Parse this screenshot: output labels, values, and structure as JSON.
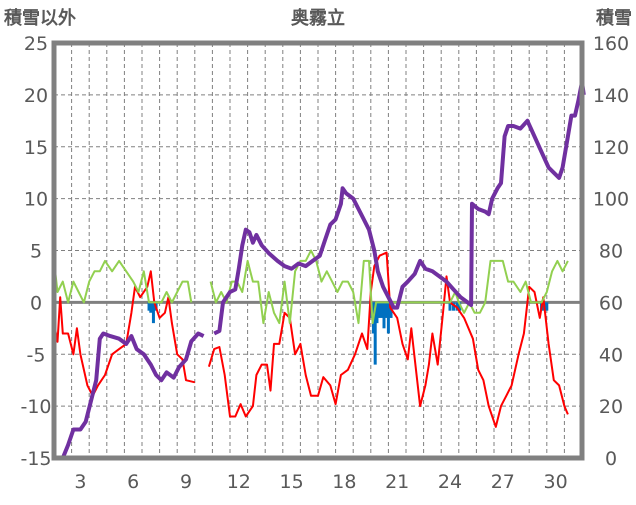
{
  "chart_data": {
    "type": "line",
    "title": "奥霧立",
    "ylabel_left": "積雪以外",
    "ylabel_right": "積雪",
    "xlim": [
      1.5,
      31.5
    ],
    "ylim_left": [
      -15,
      25
    ],
    "ylim_right": [
      0,
      160
    ],
    "x_ticks": [
      3,
      6,
      9,
      12,
      15,
      18,
      21,
      24,
      27,
      30
    ],
    "left_ticks": [
      25,
      20,
      15,
      10,
      5,
      0,
      -5,
      -10,
      -15
    ],
    "right_ticks": [
      160,
      140,
      120,
      100,
      80,
      60,
      40,
      20,
      0
    ],
    "grid": true,
    "colors": {
      "temperature": "#ff0000",
      "green": "#92d050",
      "bars": "#0070c0",
      "snow": "#7030a0",
      "frame": "#808080"
    },
    "series": [
      {
        "name": "red",
        "axis": "left",
        "points": [
          [
            1.5,
            -2
          ],
          [
            1.7,
            -3.8
          ],
          [
            1.85,
            0.5
          ],
          [
            2.0,
            -3
          ],
          [
            2.3,
            -3
          ],
          [
            2.6,
            -5
          ],
          [
            2.8,
            -2.5
          ],
          [
            3.0,
            -5
          ],
          [
            3.4,
            -8
          ],
          [
            3.7,
            -9
          ],
          [
            4.0,
            -8
          ],
          [
            4.4,
            -7
          ],
          [
            4.8,
            -5
          ],
          [
            5.2,
            -4.5
          ],
          [
            5.6,
            -4
          ],
          [
            5.9,
            -1
          ],
          [
            6.1,
            1.5
          ],
          [
            6.4,
            0.5
          ],
          [
            6.8,
            1.5
          ],
          [
            7.0,
            3
          ],
          [
            7.2,
            0
          ],
          [
            7.5,
            -1.5
          ],
          [
            7.8,
            -1
          ],
          [
            8.0,
            0.5
          ],
          [
            8.2,
            -2
          ],
          [
            8.5,
            -5
          ],
          [
            8.8,
            -5.5
          ],
          [
            9.0,
            -7.5
          ],
          [
            9.5,
            -7.7
          ],
          null,
          [
            10.3,
            -6.2
          ],
          [
            10.6,
            -4.5
          ],
          [
            10.9,
            -4.3
          ],
          [
            11.2,
            -7
          ],
          [
            11.5,
            -11
          ],
          [
            11.8,
            -11
          ],
          [
            12.1,
            -9.8
          ],
          [
            12.4,
            -11
          ],
          [
            12.8,
            -10
          ],
          [
            13.0,
            -7
          ],
          [
            13.3,
            -6
          ],
          [
            13.6,
            -6
          ],
          [
            13.8,
            -8.5
          ],
          [
            14.0,
            -4
          ],
          [
            14.3,
            -4
          ],
          [
            14.6,
            -1
          ],
          [
            14.9,
            -1.5
          ],
          [
            15.2,
            -5
          ],
          [
            15.5,
            -4
          ],
          [
            15.8,
            -7
          ],
          [
            16.1,
            -9
          ],
          [
            16.5,
            -9
          ],
          [
            16.8,
            -7.2
          ],
          [
            17.2,
            -8
          ],
          [
            17.5,
            -9.8
          ],
          [
            17.8,
            -7
          ],
          [
            18.2,
            -6.5
          ],
          [
            18.6,
            -5
          ],
          [
            19.0,
            -3
          ],
          [
            19.3,
            -4.5
          ],
          [
            19.5,
            1
          ],
          [
            19.7,
            3.5
          ],
          [
            20.0,
            4.5
          ],
          [
            20.4,
            4.8
          ],
          [
            20.6,
            -0.5
          ],
          [
            21.0,
            -1.5
          ],
          [
            21.3,
            -4
          ],
          [
            21.6,
            -5.5
          ],
          [
            21.8,
            -2.5
          ],
          [
            22.0,
            -5.5
          ],
          [
            22.3,
            -10
          ],
          [
            22.6,
            -8
          ],
          [
            22.8,
            -6
          ],
          [
            23.0,
            -3
          ],
          [
            23.3,
            -6
          ],
          [
            23.6,
            -1
          ],
          [
            23.8,
            2.5
          ],
          [
            24.0,
            0
          ],
          [
            24.4,
            -0.5
          ],
          [
            24.8,
            -1.5
          ],
          [
            25.3,
            -3.5
          ],
          [
            25.6,
            -6.5
          ],
          [
            25.9,
            -7.5
          ],
          [
            26.2,
            -10
          ],
          [
            26.6,
            -12
          ],
          [
            26.9,
            -10
          ],
          [
            27.2,
            -9
          ],
          [
            27.5,
            -8
          ],
          [
            27.9,
            -5
          ],
          [
            28.2,
            -3
          ],
          [
            28.5,
            1.5
          ],
          [
            28.8,
            1
          ],
          [
            29.1,
            -1.5
          ],
          [
            29.3,
            0.5
          ],
          [
            29.6,
            -4
          ],
          [
            29.9,
            -7.5
          ],
          [
            30.2,
            -8
          ],
          [
            30.5,
            -10
          ],
          [
            30.7,
            -10.8
          ]
        ]
      },
      {
        "name": "green",
        "axis": "left",
        "points": [
          [
            1.5,
            4
          ],
          [
            1.7,
            1
          ],
          [
            2.0,
            2
          ],
          [
            2.3,
            0
          ],
          [
            2.6,
            2
          ],
          [
            2.9,
            1
          ],
          [
            3.2,
            0
          ],
          [
            3.5,
            2
          ],
          [
            3.8,
            3
          ],
          [
            4.1,
            3
          ],
          [
            4.4,
            4
          ],
          [
            4.8,
            3
          ],
          [
            5.2,
            4
          ],
          [
            5.6,
            3
          ],
          [
            6.0,
            2
          ],
          [
            6.3,
            1
          ],
          [
            6.6,
            3
          ],
          [
            6.9,
            0
          ],
          [
            7.2,
            0
          ],
          [
            7.6,
            0
          ],
          [
            7.9,
            1
          ],
          [
            8.2,
            0
          ],
          [
            8.5,
            1
          ],
          [
            8.8,
            2
          ],
          [
            9.1,
            2
          ],
          [
            9.3,
            0
          ],
          null,
          [
            10.4,
            2
          ],
          [
            10.7,
            0
          ],
          [
            11.0,
            1
          ],
          [
            11.3,
            0
          ],
          [
            11.6,
            2
          ],
          [
            11.9,
            2
          ],
          [
            12.2,
            1
          ],
          [
            12.5,
            4
          ],
          [
            12.8,
            2
          ],
          [
            13.1,
            2
          ],
          [
            13.4,
            -2
          ],
          [
            13.7,
            1
          ],
          [
            14.0,
            -1
          ],
          [
            14.3,
            -2
          ],
          [
            14.6,
            2
          ],
          [
            14.9,
            -2
          ],
          [
            15.2,
            3
          ],
          [
            15.5,
            4
          ],
          [
            15.8,
            4
          ],
          [
            16.1,
            5
          ],
          [
            16.4,
            4
          ],
          [
            16.7,
            2
          ],
          [
            17.0,
            3
          ],
          [
            17.3,
            2
          ],
          [
            17.6,
            1
          ],
          [
            17.9,
            2
          ],
          [
            18.2,
            2
          ],
          [
            18.5,
            1
          ],
          [
            18.8,
            -2
          ],
          [
            19.1,
            4
          ],
          [
            19.4,
            4
          ],
          [
            19.6,
            -2
          ],
          [
            19.8,
            0
          ],
          [
            24.0,
            0
          ],
          [
            24.3,
            1
          ],
          [
            24.5,
            0
          ],
          [
            24.8,
            -1
          ],
          [
            25.1,
            0
          ],
          [
            25.4,
            -1
          ],
          [
            25.7,
            -1
          ],
          [
            26.0,
            0
          ],
          [
            26.3,
            4
          ],
          [
            26.6,
            4
          ],
          [
            27.0,
            4
          ],
          [
            27.3,
            2
          ],
          [
            27.6,
            2
          ],
          [
            28.0,
            1
          ],
          [
            28.3,
            2
          ],
          [
            28.6,
            0
          ],
          [
            28.9,
            0
          ],
          [
            29.2,
            0
          ],
          [
            29.5,
            1
          ],
          [
            29.8,
            3
          ],
          [
            30.1,
            4
          ],
          [
            30.4,
            3
          ],
          [
            30.7,
            4
          ]
        ]
      },
      {
        "name": "snow",
        "axis": "right",
        "points": [
          [
            1.5,
            0
          ],
          [
            2.0,
            0
          ],
          [
            2.3,
            5
          ],
          [
            2.6,
            11
          ],
          [
            3.0,
            11
          ],
          [
            3.3,
            14
          ],
          [
            3.6,
            22
          ],
          [
            3.9,
            30
          ],
          [
            4.1,
            46
          ],
          [
            4.3,
            48
          ],
          [
            4.7,
            47
          ],
          [
            5.2,
            46
          ],
          [
            5.6,
            44
          ],
          [
            5.9,
            47
          ],
          [
            6.2,
            42
          ],
          [
            6.6,
            40
          ],
          [
            7.0,
            36
          ],
          [
            7.3,
            32
          ],
          [
            7.6,
            30
          ],
          [
            7.9,
            33
          ],
          [
            8.3,
            31
          ],
          [
            8.6,
            35
          ],
          [
            9.0,
            38
          ],
          [
            9.3,
            45
          ],
          [
            9.7,
            48
          ],
          [
            10.0,
            47
          ],
          null,
          [
            10.6,
            48
          ],
          [
            10.9,
            49
          ],
          [
            11.1,
            60
          ],
          [
            11.5,
            64
          ],
          [
            11.8,
            65
          ],
          [
            12.0,
            73
          ],
          [
            12.2,
            82
          ],
          [
            12.4,
            88
          ],
          [
            12.6,
            87
          ],
          [
            12.8,
            83
          ],
          [
            13.0,
            86
          ],
          [
            13.3,
            82
          ],
          [
            13.7,
            79
          ],
          [
            14.2,
            76
          ],
          [
            14.6,
            74
          ],
          [
            15.0,
            73
          ],
          [
            15.4,
            75
          ],
          [
            15.8,
            74
          ],
          [
            16.2,
            76
          ],
          [
            16.6,
            78
          ],
          [
            16.9,
            84
          ],
          [
            17.2,
            90
          ],
          [
            17.5,
            92
          ],
          [
            17.8,
            98
          ],
          [
            17.9,
            104
          ],
          [
            18.1,
            102
          ],
          [
            18.5,
            100
          ],
          [
            18.8,
            96
          ],
          [
            19.1,
            92
          ],
          [
            19.4,
            88
          ],
          [
            19.7,
            80
          ],
          [
            19.9,
            72
          ],
          [
            20.2,
            66
          ],
          [
            20.5,
            62
          ],
          [
            20.8,
            58
          ],
          [
            21.0,
            58
          ],
          [
            21.3,
            66
          ],
          [
            21.6,
            68
          ],
          [
            22.0,
            71
          ],
          [
            22.3,
            76
          ],
          [
            22.6,
            73
          ],
          [
            23.0,
            72
          ],
          [
            23.4,
            70
          ],
          [
            23.8,
            68
          ],
          [
            24.2,
            65
          ],
          [
            24.6,
            62
          ],
          [
            25.0,
            60
          ],
          [
            25.2,
            59
          ],
          [
            25.25,
            98
          ],
          [
            25.6,
            96
          ],
          [
            26.0,
            95
          ],
          [
            26.2,
            94
          ],
          [
            26.4,
            100
          ],
          [
            26.7,
            104
          ],
          [
            26.9,
            106
          ],
          [
            27.1,
            124
          ],
          [
            27.3,
            128
          ],
          [
            27.6,
            128
          ],
          [
            28.0,
            127
          ],
          [
            28.4,
            130
          ],
          [
            28.8,
            124
          ],
          [
            29.2,
            118
          ],
          [
            29.6,
            112
          ],
          [
            29.9,
            110
          ],
          [
            30.2,
            108
          ],
          [
            30.4,
            112
          ],
          [
            30.7,
            124
          ],
          [
            30.9,
            132
          ],
          [
            31.1,
            132
          ],
          [
            31.3,
            138
          ],
          [
            31.5,
            145
          ],
          [
            31.6,
            140
          ]
        ]
      }
    ],
    "bars": {
      "name": "blue",
      "axis": "left",
      "points": [
        [
          6.9,
          -0.8
        ],
        [
          7.0,
          -1
        ],
        [
          7.15,
          -2
        ],
        [
          7.3,
          -0.8
        ],
        [
          19.55,
          -1.5
        ],
        [
          19.65,
          -3
        ],
        [
          19.75,
          -6
        ],
        [
          19.85,
          -2
        ],
        [
          19.95,
          -1.5
        ],
        [
          20.1,
          -1.5
        ],
        [
          20.25,
          -2.5
        ],
        [
          20.4,
          -1.5
        ],
        [
          20.5,
          -3
        ],
        [
          20.65,
          -1.5
        ],
        [
          24.0,
          -0.8
        ],
        [
          24.2,
          -0.8
        ],
        [
          24.4,
          -0.8
        ],
        [
          24.55,
          -0.8
        ],
        [
          29.2,
          -0.8
        ],
        [
          29.35,
          -0.8
        ],
        [
          29.5,
          -0.8
        ]
      ]
    }
  }
}
